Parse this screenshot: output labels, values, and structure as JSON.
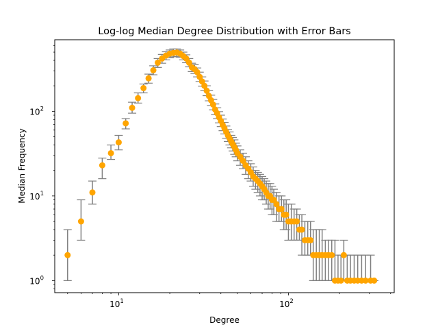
{
  "chart_data": {
    "type": "scatter",
    "title": "Log-log Median Degree Distribution with Error Bars",
    "xlabel": "Degree",
    "ylabel": "Median Frequency",
    "xscale": "log",
    "yscale": "log",
    "xlim": [
      4.2,
      420
    ],
    "ylim": [
      0.72,
      700
    ],
    "grid": false,
    "marker_color": "#ffa500",
    "errorbar_color": "#808080",
    "x_tick_labels": [
      {
        "base": "10",
        "exp": "1",
        "value": 10
      },
      {
        "base": "10",
        "exp": "2",
        "value": 100
      }
    ],
    "y_tick_labels": [
      {
        "base": "10",
        "exp": "0",
        "value": 1
      },
      {
        "base": "10",
        "exp": "1",
        "value": 10
      },
      {
        "base": "10",
        "exp": "2",
        "value": 100
      }
    ],
    "points": [
      [
        5,
        2,
        1,
        4
      ],
      [
        6,
        5,
        3,
        9
      ],
      [
        7,
        11,
        8,
        15
      ],
      [
        8,
        23,
        16,
        28
      ],
      [
        9,
        32,
        27,
        40
      ],
      [
        10,
        43,
        35,
        52
      ],
      [
        11,
        72,
        62,
        82
      ],
      [
        12,
        110,
        95,
        128
      ],
      [
        13,
        143,
        125,
        165
      ],
      [
        14,
        188,
        165,
        210
      ],
      [
        15,
        245,
        215,
        275
      ],
      [
        16,
        305,
        270,
        345
      ],
      [
        17,
        375,
        330,
        420
      ],
      [
        18,
        420,
        370,
        470
      ],
      [
        19,
        455,
        405,
        505
      ],
      [
        20,
        480,
        430,
        530
      ],
      [
        21,
        490,
        440,
        545
      ],
      [
        22,
        495,
        445,
        545
      ],
      [
        23,
        480,
        435,
        530
      ],
      [
        24,
        450,
        405,
        500
      ],
      [
        25,
        420,
        375,
        465
      ],
      [
        26,
        375,
        335,
        420
      ],
      [
        27,
        330,
        295,
        370
      ],
      [
        28,
        315,
        280,
        355
      ],
      [
        29,
        290,
        255,
        325
      ],
      [
        30,
        255,
        225,
        290
      ],
      [
        31,
        225,
        198,
        255
      ],
      [
        32,
        200,
        175,
        228
      ],
      [
        33,
        175,
        153,
        200
      ],
      [
        34,
        152,
        133,
        175
      ],
      [
        35,
        135,
        117,
        155
      ],
      [
        36,
        120,
        104,
        138
      ],
      [
        37,
        105,
        91,
        122
      ],
      [
        38,
        95,
        82,
        110
      ],
      [
        39,
        85,
        73,
        99
      ],
      [
        40,
        77,
        66,
        90
      ],
      [
        41,
        69,
        59,
        81
      ],
      [
        42,
        63,
        54,
        74
      ],
      [
        43,
        57,
        48,
        67
      ],
      [
        44,
        52,
        44,
        61
      ],
      [
        45,
        48,
        40,
        57
      ],
      [
        46,
        44,
        37,
        52
      ],
      [
        47,
        41,
        34,
        49
      ],
      [
        48,
        38,
        31,
        46
      ],
      [
        49,
        35,
        29,
        42
      ],
      [
        50,
        32,
        26,
        39
      ],
      [
        52,
        29,
        23,
        35
      ],
      [
        54,
        26,
        21,
        32
      ],
      [
        56,
        23,
        18,
        29
      ],
      [
        58,
        21,
        16,
        26
      ],
      [
        60,
        19,
        15,
        24
      ],
      [
        62,
        17,
        13,
        22
      ],
      [
        64,
        16,
        12,
        20
      ],
      [
        66,
        15,
        11,
        19
      ],
      [
        68,
        14,
        10,
        18
      ],
      [
        70,
        13,
        9,
        17
      ],
      [
        72,
        12,
        9,
        16
      ],
      [
        74,
        11,
        8,
        15
      ],
      [
        76,
        10,
        7,
        14
      ],
      [
        78,
        10,
        7,
        14
      ],
      [
        80,
        9,
        6,
        13
      ],
      [
        82,
        9,
        6,
        12
      ],
      [
        85,
        8,
        5,
        11
      ],
      [
        88,
        7,
        5,
        10
      ],
      [
        91,
        7,
        5,
        10
      ],
      [
        94,
        6,
        4,
        9
      ],
      [
        97,
        6,
        4,
        9
      ],
      [
        100,
        5,
        3,
        8
      ],
      [
        104,
        5,
        3,
        8
      ],
      [
        108,
        5,
        3,
        7
      ],
      [
        112,
        5,
        3,
        7
      ],
      [
        116,
        4,
        3,
        6
      ],
      [
        120,
        4,
        2,
        6
      ],
      [
        125,
        3,
        2,
        5
      ],
      [
        130,
        3,
        2,
        5
      ],
      [
        135,
        3,
        2,
        5
      ],
      [
        140,
        2,
        1,
        4
      ],
      [
        146,
        2,
        1,
        4
      ],
      [
        152,
        2,
        1,
        4
      ],
      [
        158,
        2,
        1,
        4
      ],
      [
        165,
        2,
        1,
        3
      ],
      [
        172,
        2,
        1,
        3
      ],
      [
        180,
        2,
        1,
        3
      ],
      [
        188,
        1,
        1,
        3
      ],
      [
        196,
        1,
        1,
        2
      ],
      [
        204,
        1,
        1,
        2
      ],
      [
        212,
        2,
        1,
        3
      ],
      [
        222,
        1,
        1,
        2
      ],
      [
        232,
        1,
        1,
        2
      ],
      [
        244,
        1,
        1,
        2
      ],
      [
        256,
        1,
        1,
        2
      ],
      [
        270,
        1,
        1,
        2
      ],
      [
        285,
        1,
        1,
        2
      ],
      [
        305,
        1,
        1,
        2
      ],
      [
        320,
        1,
        1,
        1
      ]
    ]
  }
}
